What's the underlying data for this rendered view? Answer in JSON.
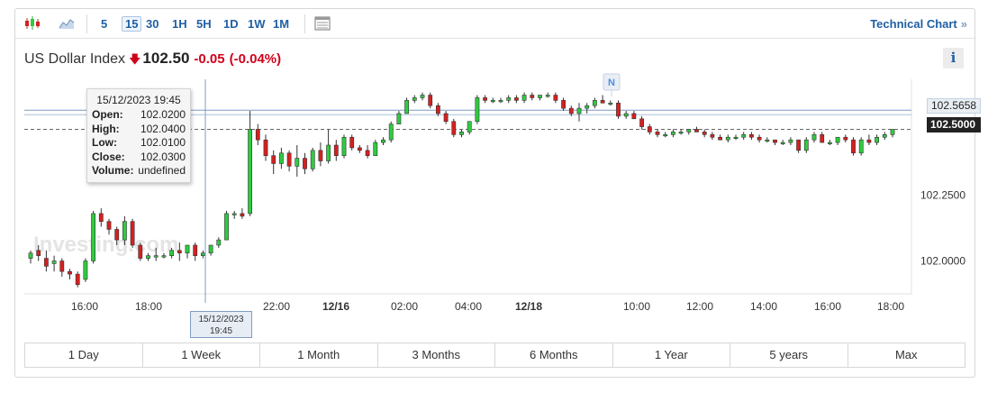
{
  "toolbar": {
    "intervals": [
      "5",
      "15",
      "30",
      "1H",
      "5H",
      "1D",
      "1W",
      "1M"
    ],
    "active_interval": "15",
    "technical_link": "Technical Chart",
    "technical_arrow": "»"
  },
  "header": {
    "name": "US Dollar Index",
    "price": "102.50",
    "change": "-0.05",
    "change_pct": "(-0.04%)",
    "info": "i",
    "down_color": "#d0021b"
  },
  "tooltip": {
    "date": "15/12/2023 19:45",
    "rows": [
      {
        "k": "Open:",
        "v": "102.0200"
      },
      {
        "k": "High:",
        "v": "102.0400"
      },
      {
        "k": "Low:",
        "v": "102.0100"
      },
      {
        "k": "Close:",
        "v": "102.0300"
      },
      {
        "k": "Volume:",
        "v": "undefined"
      }
    ]
  },
  "crosshair_label": {
    "line1": "15/12/2023",
    "line2": "19:45"
  },
  "watermark": "Investing.com",
  "news_marker": "N",
  "ranges": [
    "1 Day",
    "1 Week",
    "1 Month",
    "3 Months",
    "6 Months",
    "1 Year",
    "5 years",
    "Max"
  ],
  "chart_data": {
    "type": "candlestick",
    "y_ticks": [
      "102.2500",
      "102.0000"
    ],
    "y_tick_values": [
      102.25,
      102.0
    ],
    "ylim": [
      101.875,
      102.69
    ],
    "x_ticks": [
      "16:00",
      "18:00",
      "22:00",
      "12/16",
      "02:00",
      "04:00",
      "12/18",
      "10:00",
      "12:00",
      "14:00",
      "16:00",
      "18:00"
    ],
    "current_price": "102.5000",
    "current_value": 102.5,
    "reference_price": "102.5658",
    "reference_value": 102.5658,
    "up_color": "#2ecc40",
    "down_color": "#d62020",
    "ohlc": [
      [
        102.01,
        102.04,
        101.99,
        102.03
      ],
      [
        102.04,
        102.06,
        102.0,
        102.02
      ],
      [
        102.01,
        102.04,
        101.96,
        101.98
      ],
      [
        101.99,
        102.02,
        101.96,
        102.0
      ],
      [
        102.0,
        102.01,
        101.94,
        101.96
      ],
      [
        101.96,
        101.97,
        101.93,
        101.95
      ],
      [
        101.95,
        101.96,
        101.9,
        101.91
      ],
      [
        101.93,
        102.01,
        101.92,
        102.0
      ],
      [
        102.0,
        102.19,
        101.99,
        102.18
      ],
      [
        102.18,
        102.2,
        102.13,
        102.15
      ],
      [
        102.15,
        102.16,
        102.1,
        102.12
      ],
      [
        102.12,
        102.13,
        102.06,
        102.08
      ],
      [
        102.08,
        102.17,
        102.06,
        102.15
      ],
      [
        102.15,
        102.16,
        102.05,
        102.06
      ],
      [
        102.06,
        102.07,
        102.0,
        102.01
      ],
      [
        102.01,
        102.03,
        102.0,
        102.02
      ],
      [
        102.02,
        102.05,
        102.0,
        102.02
      ],
      [
        102.02,
        102.03,
        102.01,
        102.02
      ],
      [
        102.02,
        102.05,
        102.01,
        102.04
      ],
      [
        102.04,
        102.07,
        102.0,
        102.03
      ],
      [
        102.03,
        102.06,
        102.01,
        102.06
      ],
      [
        102.06,
        102.07,
        102.0,
        102.02
      ],
      [
        102.02,
        102.04,
        102.01,
        102.03
      ],
      [
        102.03,
        102.06,
        102.02,
        102.06
      ],
      [
        102.06,
        102.09,
        102.05,
        102.08
      ],
      [
        102.08,
        102.19,
        102.08,
        102.18
      ],
      [
        102.18,
        102.19,
        102.16,
        102.18
      ],
      [
        102.18,
        102.2,
        102.16,
        102.17
      ],
      [
        102.18,
        102.57,
        102.17,
        102.5
      ],
      [
        102.5,
        102.52,
        102.44,
        102.46
      ],
      [
        102.46,
        102.48,
        102.38,
        102.4
      ],
      [
        102.4,
        102.42,
        102.33,
        102.37
      ],
      [
        102.37,
        102.43,
        102.35,
        102.41
      ],
      [
        102.41,
        102.42,
        102.34,
        102.36
      ],
      [
        102.36,
        102.44,
        102.32,
        102.39
      ],
      [
        102.39,
        102.41,
        102.33,
        102.35
      ],
      [
        102.35,
        102.43,
        102.34,
        102.42
      ],
      [
        102.42,
        102.45,
        102.36,
        102.38
      ],
      [
        102.38,
        102.5,
        102.37,
        102.44
      ],
      [
        102.44,
        102.46,
        102.38,
        102.4
      ],
      [
        102.4,
        102.48,
        102.39,
        102.47
      ],
      [
        102.47,
        102.48,
        102.42,
        102.43
      ],
      [
        102.43,
        102.44,
        102.41,
        102.42
      ],
      [
        102.42,
        102.44,
        102.39,
        102.4
      ],
      [
        102.4,
        102.46,
        102.4,
        102.45
      ],
      [
        102.45,
        102.47,
        102.44,
        102.46
      ],
      [
        102.46,
        102.53,
        102.45,
        102.52
      ],
      [
        102.52,
        102.57,
        102.52,
        102.56
      ],
      [
        102.56,
        102.62,
        102.56,
        102.61
      ],
      [
        102.61,
        102.63,
        102.6,
        102.62
      ],
      [
        102.62,
        102.64,
        102.61,
        102.63
      ],
      [
        102.63,
        102.64,
        102.58,
        102.59
      ],
      [
        102.59,
        102.6,
        102.55,
        102.56
      ],
      [
        102.56,
        102.57,
        102.52,
        102.53
      ],
      [
        102.53,
        102.54,
        102.47,
        102.48
      ],
      [
        102.48,
        102.5,
        102.47,
        102.49
      ],
      [
        102.49,
        102.53,
        102.48,
        102.53
      ],
      [
        102.53,
        102.63,
        102.52,
        102.62
      ],
      [
        102.62,
        102.63,
        102.6,
        102.61
      ],
      [
        102.61,
        102.62,
        102.6,
        102.61
      ],
      [
        102.61,
        102.62,
        102.6,
        102.61
      ],
      [
        102.61,
        102.63,
        102.6,
        102.62
      ],
      [
        102.62,
        102.63,
        102.6,
        102.61
      ],
      [
        102.61,
        102.64,
        102.6,
        102.63
      ],
      [
        102.63,
        102.64,
        102.61,
        102.62
      ],
      [
        102.62,
        102.63,
        102.61,
        102.63
      ],
      [
        102.63,
        102.64,
        102.62,
        102.63
      ],
      [
        102.63,
        102.64,
        102.6,
        102.61
      ],
      [
        102.61,
        102.62,
        102.57,
        102.58
      ],
      [
        102.58,
        102.59,
        102.55,
        102.56
      ],
      [
        102.56,
        102.6,
        102.53,
        102.58
      ],
      [
        102.58,
        102.6,
        102.56,
        102.59
      ],
      [
        102.59,
        102.62,
        102.58,
        102.61
      ],
      [
        102.61,
        102.63,
        102.6,
        102.6
      ],
      [
        102.6,
        102.61,
        102.59,
        102.6
      ],
      [
        102.6,
        102.61,
        102.54,
        102.55
      ],
      [
        102.55,
        102.57,
        102.54,
        102.56
      ],
      [
        102.56,
        102.57,
        102.54,
        102.54
      ],
      [
        102.54,
        102.55,
        102.5,
        102.51
      ],
      [
        102.51,
        102.52,
        102.48,
        102.49
      ],
      [
        102.49,
        102.5,
        102.47,
        102.48
      ],
      [
        102.48,
        102.49,
        102.47,
        102.48
      ],
      [
        102.48,
        102.5,
        102.47,
        102.49
      ],
      [
        102.49,
        102.5,
        102.48,
        102.49
      ],
      [
        102.49,
        102.5,
        102.48,
        102.5
      ],
      [
        102.5,
        102.51,
        102.49,
        102.49
      ],
      [
        102.49,
        102.5,
        102.47,
        102.48
      ],
      [
        102.48,
        102.49,
        102.46,
        102.47
      ],
      [
        102.47,
        102.48,
        102.46,
        102.46
      ],
      [
        102.46,
        102.48,
        102.45,
        102.47
      ],
      [
        102.47,
        102.48,
        102.46,
        102.47
      ],
      [
        102.47,
        102.49,
        102.46,
        102.48
      ],
      [
        102.48,
        102.49,
        102.46,
        102.47
      ],
      [
        102.47,
        102.48,
        102.45,
        102.46
      ],
      [
        102.46,
        102.47,
        102.45,
        102.46
      ],
      [
        102.46,
        102.46,
        102.44,
        102.45
      ],
      [
        102.45,
        102.46,
        102.44,
        102.45
      ],
      [
        102.45,
        102.47,
        102.44,
        102.46
      ],
      [
        102.46,
        102.46,
        102.41,
        102.42
      ],
      [
        102.42,
        102.47,
        102.41,
        102.46
      ],
      [
        102.46,
        102.49,
        102.45,
        102.48
      ],
      [
        102.48,
        102.49,
        102.45,
        102.45
      ],
      [
        102.45,
        102.46,
        102.44,
        102.45
      ],
      [
        102.45,
        102.47,
        102.44,
        102.47
      ],
      [
        102.47,
        102.48,
        102.45,
        102.46
      ],
      [
        102.46,
        102.47,
        102.4,
        102.41
      ],
      [
        102.41,
        102.47,
        102.4,
        102.46
      ],
      [
        102.46,
        102.48,
        102.44,
        102.45
      ],
      [
        102.45,
        102.48,
        102.44,
        102.47
      ],
      [
        102.47,
        102.49,
        102.46,
        102.48
      ],
      [
        102.48,
        102.5,
        102.47,
        102.5
      ]
    ]
  }
}
